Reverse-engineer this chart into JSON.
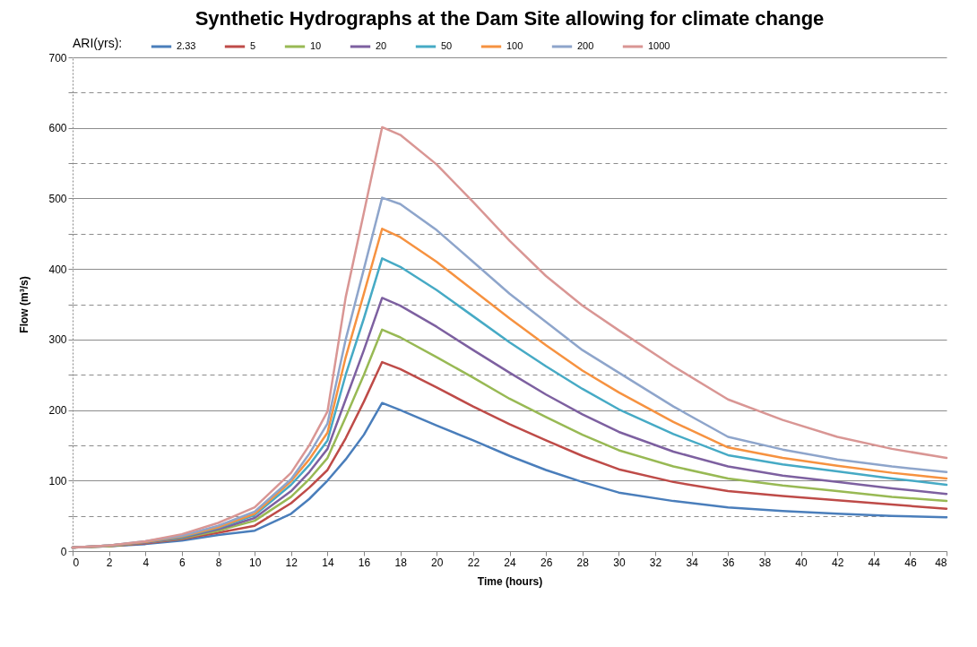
{
  "chart_data": {
    "type": "line",
    "title": "Synthetic Hydrographs at the Dam Site allowing for climate change",
    "xlabel": "Time (hours)",
    "ylabel": "Flow (m³/s)",
    "legend_title": "ARI(yrs):",
    "legend": "top",
    "grid": "y",
    "marker": "none",
    "line_style": "solid",
    "x": [
      0,
      2,
      4,
      6,
      8,
      10,
      12,
      13,
      14,
      15,
      16,
      17,
      18,
      20,
      22,
      24,
      26,
      28,
      30,
      33,
      36,
      39,
      42,
      45,
      48
    ],
    "xlim": [
      0,
      48
    ],
    "xticks": [
      0,
      2,
      4,
      6,
      8,
      10,
      12,
      14,
      16,
      18,
      20,
      22,
      24,
      26,
      28,
      30,
      32,
      34,
      36,
      38,
      40,
      42,
      44,
      46,
      48
    ],
    "ylim": [
      0,
      700
    ],
    "yticks": [
      0,
      {
        "value": 50,
        "label": null
      },
      100,
      {
        "value": 150,
        "label": null
      },
      200,
      {
        "value": 250,
        "label": null
      },
      300,
      {
        "value": 350,
        "label": null
      },
      400,
      {
        "value": 450,
        "label": null
      },
      500,
      {
        "value": 550,
        "label": null
      },
      600,
      {
        "value": 650,
        "label": null
      },
      700
    ],
    "series": [
      {
        "name": "2.33",
        "color": "#4a7ebb",
        "values": [
          5,
          7,
          10,
          15,
          23,
          29,
          53,
          74,
          100,
          130,
          165,
          210,
          200,
          178,
          157,
          135,
          115,
          98,
          83,
          71,
          62,
          57,
          53,
          50,
          48
        ]
      },
      {
        "name": "5",
        "color": "#be4b48",
        "values": [
          5,
          7,
          11,
          17,
          26,
          36,
          68,
          90,
          115,
          160,
          212,
          268,
          258,
          232,
          205,
          180,
          157,
          135,
          116,
          98,
          85,
          78,
          72,
          66,
          60
        ]
      },
      {
        "name": "10",
        "color": "#98b954",
        "values": [
          5,
          7,
          12,
          18,
          29,
          43,
          77,
          102,
          132,
          190,
          250,
          314,
          303,
          275,
          246,
          216,
          190,
          165,
          143,
          120,
          103,
          93,
          85,
          77,
          71
        ]
      },
      {
        "name": "20",
        "color": "#7d60a0",
        "values": [
          5,
          8,
          12,
          19,
          31,
          47,
          85,
          112,
          145,
          215,
          285,
          359,
          348,
          318,
          285,
          253,
          222,
          194,
          169,
          141,
          120,
          107,
          98,
          89,
          81
        ]
      },
      {
        "name": "50",
        "color": "#46aac5",
        "values": [
          5,
          8,
          13,
          20,
          33,
          51,
          94,
          122,
          157,
          250,
          330,
          415,
          403,
          370,
          333,
          296,
          262,
          230,
          201,
          166,
          136,
          123,
          113,
          103,
          94
        ]
      },
      {
        "name": "100",
        "color": "#f69240",
        "values": [
          5,
          8,
          13,
          21,
          34,
          53,
          99,
          130,
          168,
          275,
          365,
          457,
          445,
          410,
          370,
          330,
          292,
          256,
          225,
          183,
          147,
          132,
          121,
          111,
          103
        ]
      },
      {
        "name": "200",
        "color": "#8ea5cb",
        "values": [
          5,
          8,
          14,
          22,
          36,
          56,
          102,
          138,
          181,
          300,
          400,
          501,
          492,
          455,
          410,
          365,
          325,
          285,
          253,
          205,
          162,
          144,
          130,
          120,
          112
        ]
      },
      {
        "name": "1000",
        "color": "#d99694",
        "values": [
          5,
          8,
          14,
          24,
          40,
          62,
          111,
          150,
          198,
          360,
          480,
          601,
          590,
          548,
          495,
          440,
          390,
          348,
          313,
          262,
          215,
          186,
          162,
          145,
          132
        ]
      }
    ]
  }
}
